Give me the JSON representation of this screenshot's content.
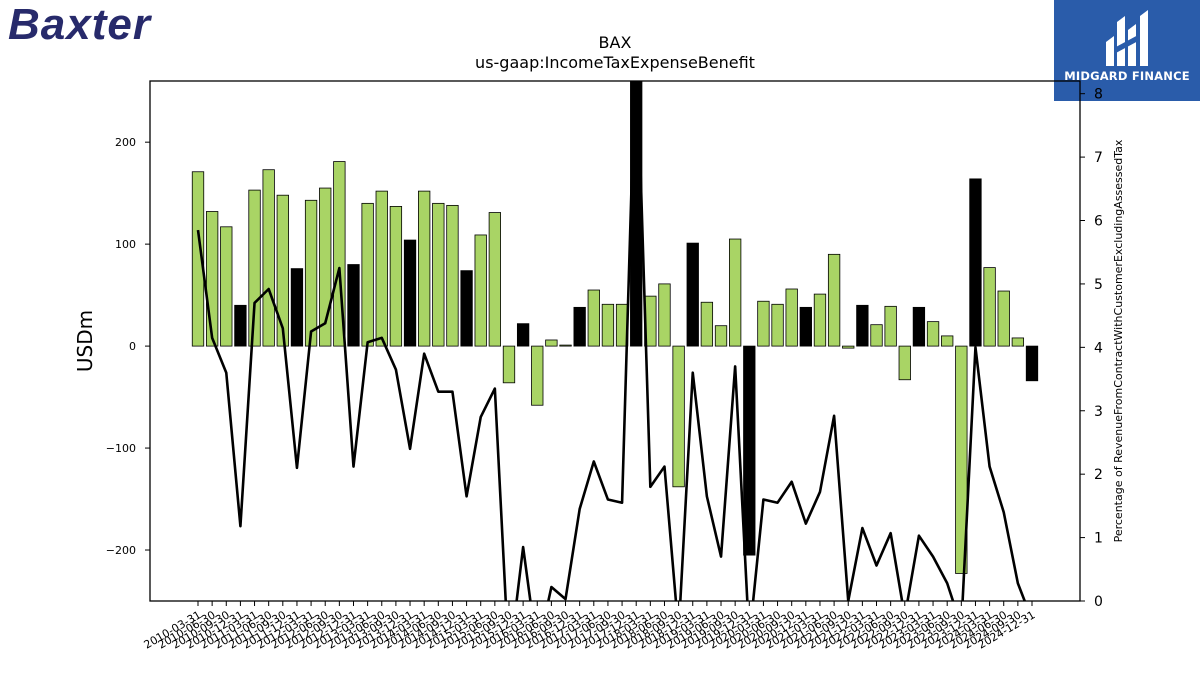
{
  "colors": {
    "positive": "#a9d465",
    "highlight": "#000000",
    "line": "#000000",
    "baxter_blue": "#272a6b",
    "midgard_blue": "#2a5caa"
  },
  "brand": {
    "name": "Baxter"
  },
  "watermark": {
    "text": "MIDGARD FINANCE",
    "icon": "midgard-logo-icon"
  },
  "chart_data": {
    "type": "bar",
    "title": "BAX",
    "subtitle": "us-gaap:IncomeTaxExpenseBenefit",
    "ylabel": "USDm",
    "y2label": "Percentage of RevenueFromContractWithCustomerExcludingAssessedTax",
    "ylim": [
      -250,
      260
    ],
    "y2lim": [
      0,
      8.2
    ],
    "yticks": [
      -200,
      -100,
      0,
      100,
      200
    ],
    "y2ticks": [
      0,
      1,
      2,
      3,
      4,
      5,
      6,
      7,
      8
    ],
    "grid": false,
    "categories": [
      "2010-03-31",
      "2010-06-30",
      "2010-09-30",
      "2010-12-31",
      "2011-03-31",
      "2011-06-30",
      "2011-09-30",
      "2011-12-31",
      "2012-03-31",
      "2012-06-30",
      "2012-09-30",
      "2012-12-31",
      "2013-03-31",
      "2013-06-30",
      "2013-09-30",
      "2013-12-31",
      "2014-03-31",
      "2014-06-30",
      "2014-09-30",
      "2014-12-31",
      "2015-03-31",
      "2015-06-30",
      "2015-09-30",
      "2015-12-31",
      "2016-03-31",
      "2016-06-30",
      "2016-09-30",
      "2016-12-31",
      "2017-03-31",
      "2017-06-30",
      "2017-09-30",
      "2017-12-31",
      "2018-03-31",
      "2018-06-30",
      "2018-09-30",
      "2018-12-31",
      "2019-03-31",
      "2019-06-30",
      "2019-09-30",
      "2019-12-31",
      "2020-03-31",
      "2020-06-30",
      "2020-09-30",
      "2020-12-31",
      "2021-03-31",
      "2021-06-30",
      "2021-09-30",
      "2021-12-31",
      "2022-03-31",
      "2022-06-30",
      "2022-09-30",
      "2022-12-31",
      "2023-03-31",
      "2023-06-30",
      "2023-09-30",
      "2023-12-31",
      "2024-03-31",
      "2024-06-30",
      "2024-09-30",
      "2024-12-31"
    ],
    "xtick_labels": [
      "2010-03-31",
      "2010-06-30",
      "2010-09-30",
      "2010-12-31",
      "2011-03-31",
      "2011-06-30",
      "2011-09-30",
      "2011-12-31",
      "2012-03-31",
      "2012-06-30",
      "2012-09-30",
      "2012-12-31",
      "2013-03-31",
      "2013-06-30",
      "2013-09-30",
      "2013-12-31",
      "2014-03-31",
      "2014-06-30",
      "2014-09-30",
      "2014-12-31",
      "2015-03-31",
      "2015-06-30",
      "2015-09-30",
      "2015-12-31",
      "2016-03-31",
      "2016-06-30",
      "2016-09-30",
      "2016-12-31",
      "2017-03-31",
      "2017-06-30",
      "2017-09-30",
      "2017-12-31",
      "2018-03-31",
      "2018-06-30",
      "2018-09-30",
      "2018-12-31",
      "2019-03-31",
      "2019-06-30",
      "2019-09-30",
      "2019-12-31",
      "2020-03-31",
      "2020-06-30",
      "2020-09-30",
      "2020-12-31",
      "2021-03-31",
      "2021-06-30",
      "2021-09-30",
      "2021-12-31",
      "2022-03-31",
      "2022-06-30",
      "2022-09-30",
      "2022-12-31",
      "2023-03-31",
      "2023-06-30",
      "2023-09-30",
      "2023-12-31",
      "2024-03-31",
      "2024-06-30",
      "2024-09-30",
      "2024-12-31"
    ],
    "bar_values": [
      171,
      132,
      117,
      40,
      153,
      173,
      148,
      76,
      143,
      155,
      181,
      80,
      140,
      152,
      137,
      104,
      152,
      140,
      138,
      74,
      109,
      131,
      -36,
      22,
      -58,
      6,
      1,
      38,
      55,
      41,
      41,
      290,
      49,
      61,
      -138,
      101,
      43,
      20,
      105,
      -205,
      44,
      41,
      56,
      38,
      51,
      90,
      -2,
      40,
      21,
      39,
      -33,
      38,
      24,
      10,
      -223,
      164,
      77,
      54,
      8,
      -34
    ],
    "bar_highlight": [
      false,
      false,
      false,
      true,
      false,
      false,
      false,
      true,
      false,
      false,
      false,
      true,
      false,
      false,
      false,
      true,
      false,
      false,
      false,
      true,
      false,
      false,
      false,
      true,
      false,
      false,
      false,
      true,
      false,
      false,
      false,
      true,
      false,
      false,
      false,
      true,
      false,
      false,
      false,
      true,
      false,
      false,
      false,
      true,
      false,
      false,
      false,
      true,
      false,
      false,
      false,
      true,
      false,
      false,
      false,
      true,
      false,
      false,
      false,
      true
    ],
    "line_values": [
      5.85,
      4.15,
      3.6,
      1.18,
      4.7,
      4.92,
      4.3,
      2.1,
      4.25,
      4.38,
      5.25,
      2.12,
      4.08,
      4.15,
      3.65,
      2.4,
      3.9,
      3.3,
      3.3,
      1.65,
      2.9,
      3.35,
      -1.0,
      0.85,
      -0.8,
      0.22,
      0.03,
      1.45,
      2.2,
      1.6,
      1.55,
      9.0,
      1.8,
      2.12,
      -0.5,
      3.6,
      1.65,
      0.7,
      3.7,
      -0.6,
      1.6,
      1.55,
      1.88,
      1.22,
      1.72,
      2.92,
      0.0,
      1.15,
      0.56,
      1.07,
      -0.25,
      1.03,
      0.7,
      0.28,
      -0.4,
      4.0,
      2.12,
      1.4,
      0.28,
      -0.3
    ]
  }
}
